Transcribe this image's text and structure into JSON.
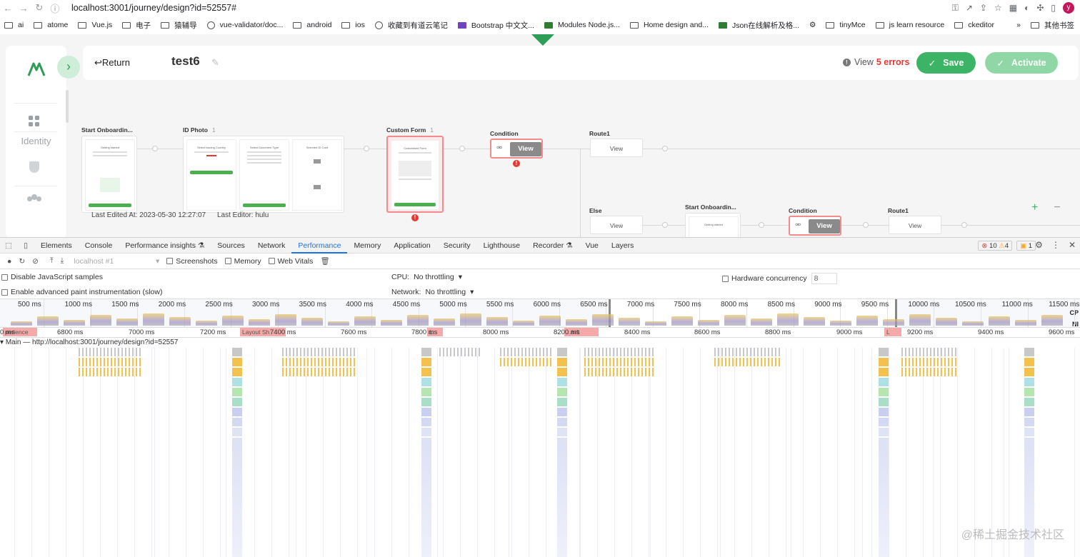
{
  "browser": {
    "url": "localhost:3001/journey/design?id=52557#",
    "bookmarks": [
      "ai",
      "atome",
      "Vue.js",
      "电子",
      "猿辅导",
      "vue-validator/doc...",
      "android",
      "ios",
      "收藏到有道云笔记",
      "Bootstrap 中文文...",
      "Modules Node.js...",
      "Home design and...",
      "Json在线解析及格...",
      "",
      "tinyMce",
      "js learn resource",
      "ckeditor"
    ],
    "overflow": "»",
    "other_bookmarks": "其他书签",
    "profile_initial": "y"
  },
  "app": {
    "return_label": "Return",
    "journey_title": "test6",
    "sidebar_section": "Identity",
    "errors_prefix": "View",
    "errors_count": "5 errors",
    "save_label": "Save",
    "activate_label": "Activate",
    "last_edited": "Last Edited At: 2023-05-30 12:27:07",
    "last_editor": "Last Editor: hulu",
    "nodes": {
      "start": "Start Onboardin...",
      "id_photo": "ID Photo",
      "id_photo_count": "1",
      "custom_form": "Custom Form",
      "custom_form_count": "1",
      "condition": "Condition",
      "route1": "Route1",
      "else": "Else",
      "start2": "Start Onboardin...",
      "condition2": "Condition",
      "route1b": "Route1",
      "view": "View",
      "err_mark": "!"
    },
    "phones": {
      "p1_title": "Getting started",
      "p2_title": "Select Issuing Country",
      "p3_title": "Select Document Type",
      "p4_title": "Selected ID Card",
      "p5_title": "Customised Form",
      "p6_title": "Getting started"
    },
    "zoom_in": "+",
    "zoom_out": "−"
  },
  "devtools": {
    "tabs": [
      "Elements",
      "Console",
      "Performance insights ⚗",
      "Sources",
      "Network",
      "Performance",
      "Memory",
      "Application",
      "Security",
      "Lighthouse",
      "Recorder ⚗",
      "Vue",
      "Layers"
    ],
    "active_tab": "Performance",
    "errors_badge": "10",
    "warnings_badge": "4",
    "issues_badge": "1",
    "profile_select": "localhost #1",
    "screenshots_label": "Screenshots",
    "memory_label": "Memory",
    "webvitals_label": "Web Vitals",
    "disable_js_samples": "Disable JavaScript samples",
    "enable_paint": "Enable advanced paint instrumentation (slow)",
    "cpu_label": "CPU:",
    "cpu_value": "No throttling",
    "network_label": "Network:",
    "network_value": "No throttling",
    "hw_label": "Hardware concurrency",
    "hw_value": "8",
    "overview_ticks": [
      "500 ms",
      "1000 ms",
      "1500 ms",
      "2000 ms",
      "2500 ms",
      "3000 ms",
      "3500 ms",
      "4000 ms",
      "4500 ms",
      "5000 ms",
      "5500 ms",
      "6000 ms",
      "6500 ms",
      "7000 ms",
      "7500 ms",
      "8000 ms",
      "8500 ms",
      "9000 ms",
      "9500 ms",
      "10000 ms",
      "10500 ms",
      "11000 ms",
      "11500 ms"
    ],
    "overview_side_labels": [
      "CP",
      "NI"
    ],
    "ruler_ticks": [
      "0 ms",
      "6800 ms",
      "7000 ms",
      "7200 ms",
      "7400 ms",
      "7600 ms",
      "7800 ms",
      "8000 ms",
      "8200 ms",
      "8400 ms",
      "8600 ms",
      "8800 ms",
      "9000 ms",
      "9200 ms",
      "9400 ms",
      "9600 ms"
    ],
    "layout_shift_labels": [
      "perience",
      "Layout Sh",
      "L",
      "...hift",
      "L"
    ],
    "main_thread_label": "Main — http://localhost:3001/journey/design?id=52557",
    "watermark": "@稀土掘金技术社区"
  }
}
